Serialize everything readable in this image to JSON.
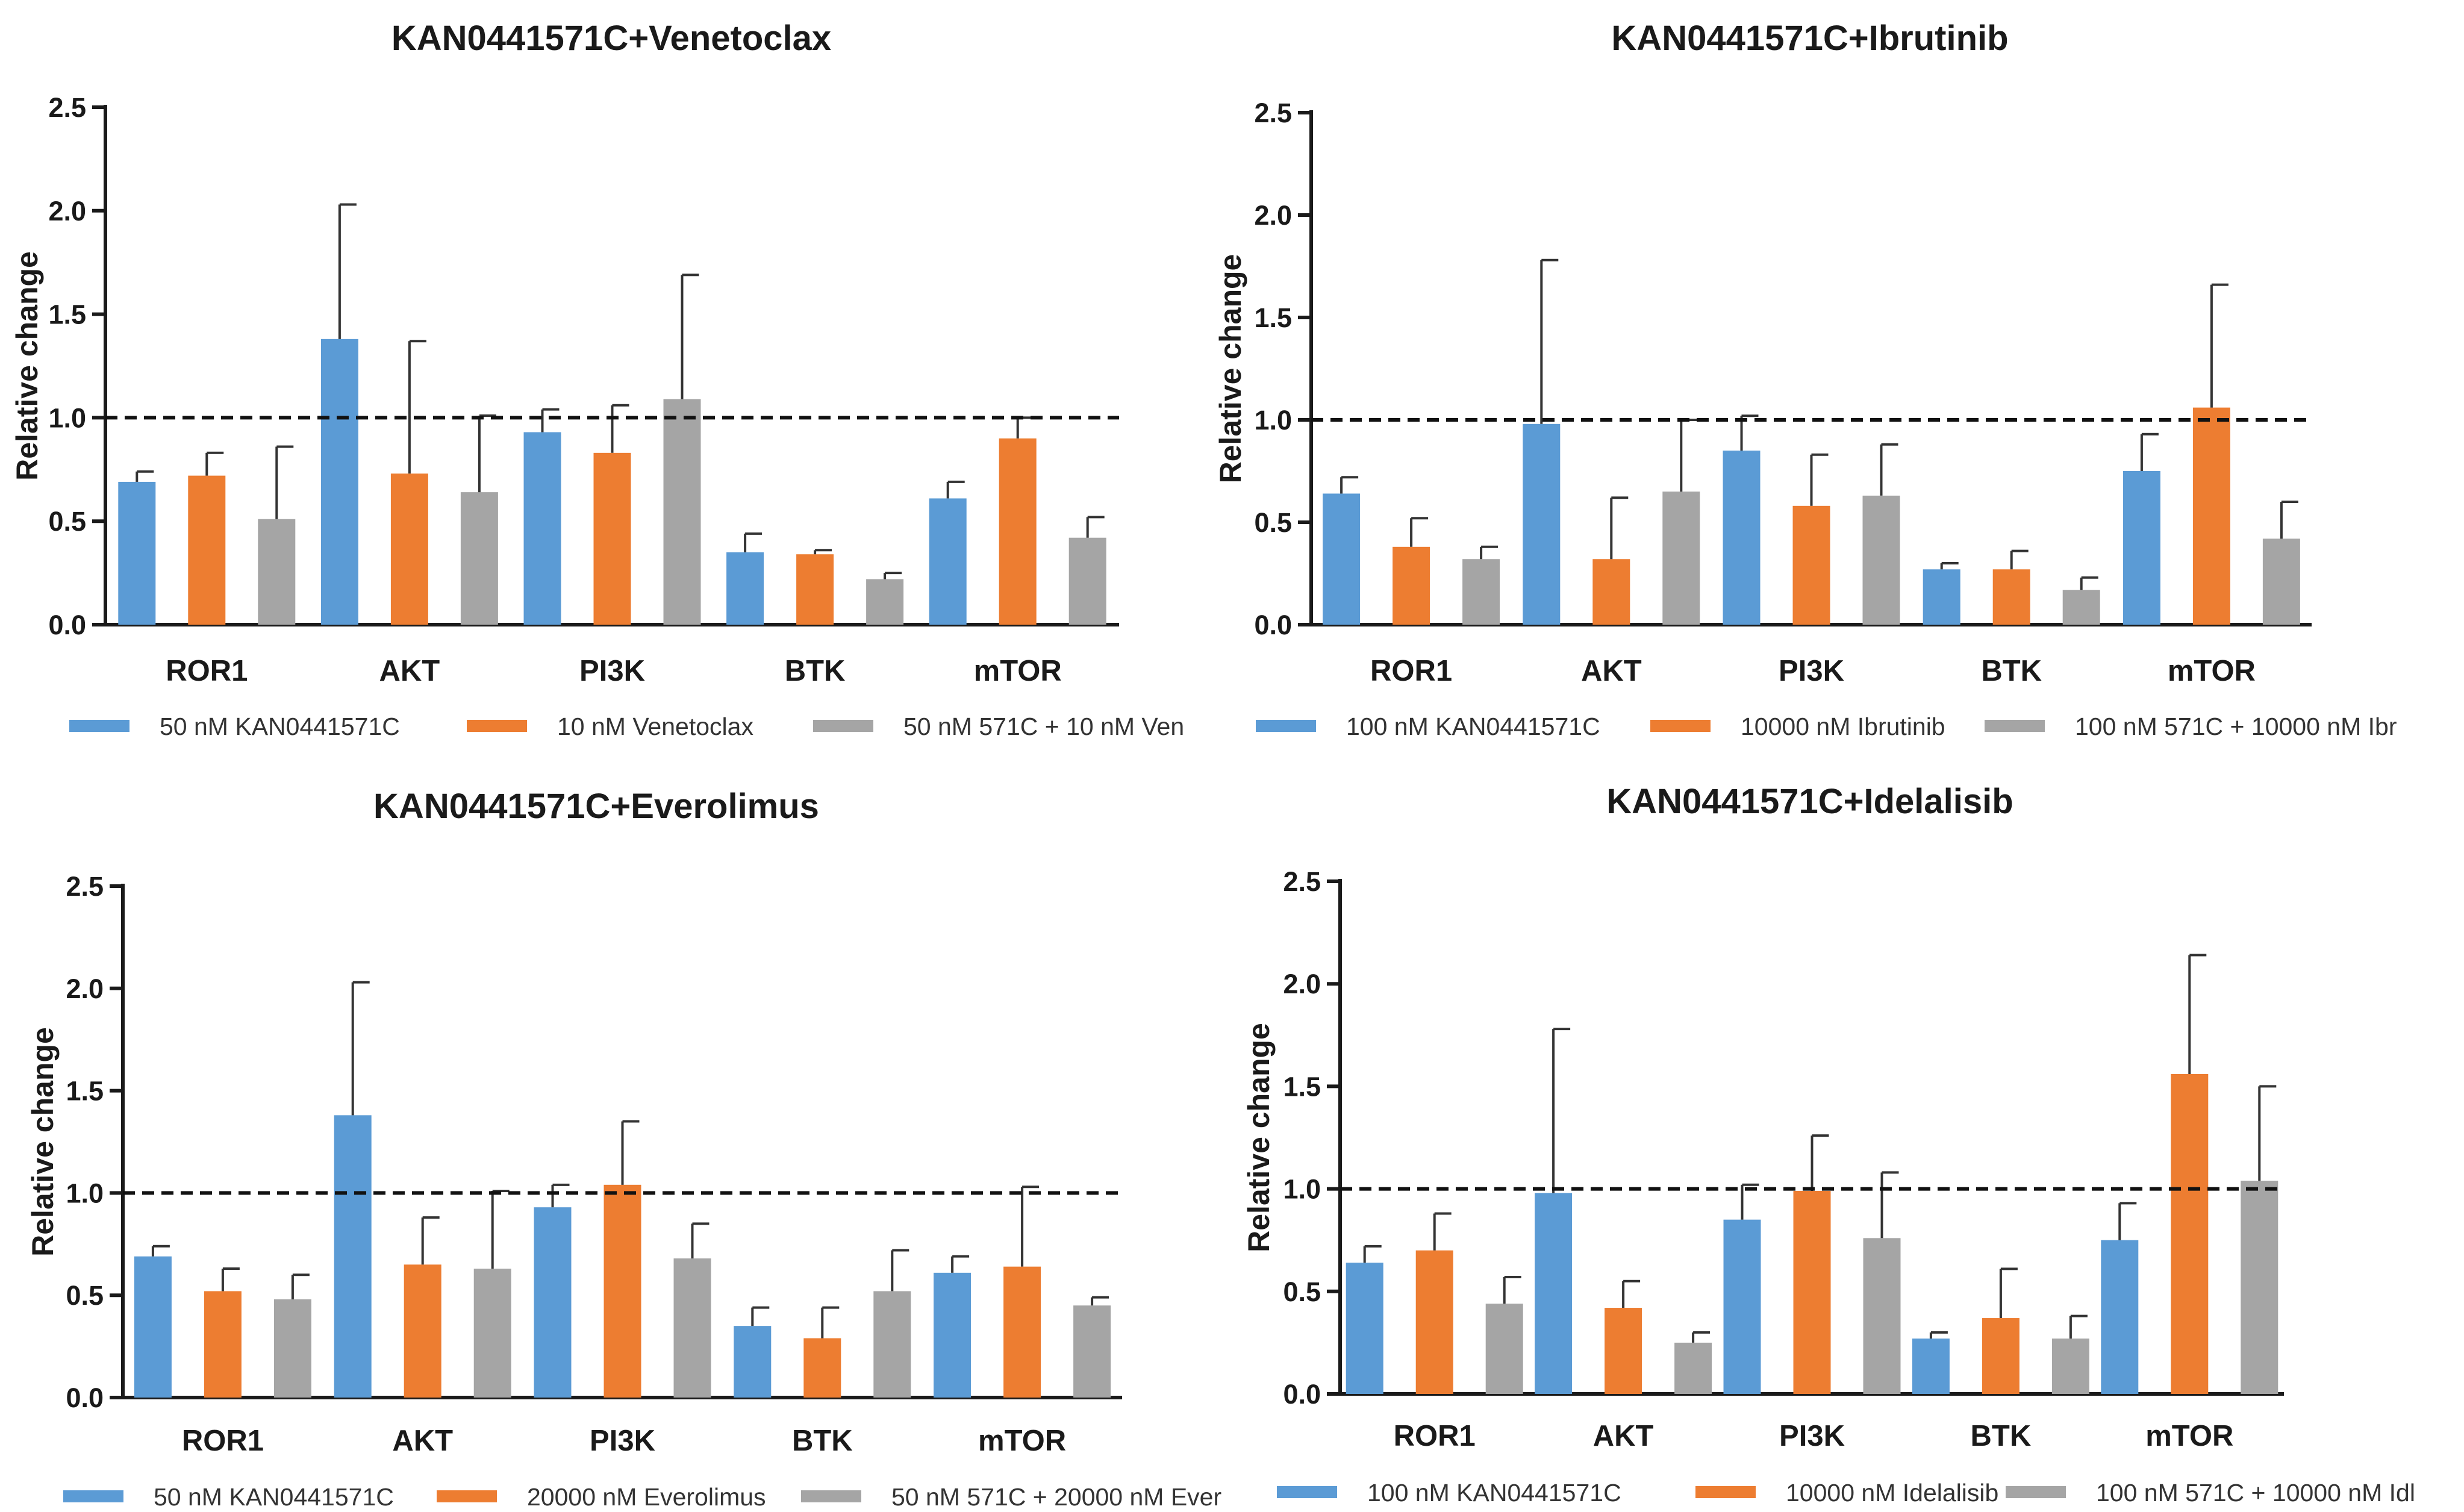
{
  "chart_data": [
    {
      "type": "bar",
      "title": "KAN0441571C+Venetoclax",
      "xlabel": "",
      "ylabel": "Relative change",
      "ylim": [
        0,
        2.5
      ],
      "yticks": [
        "0.0",
        "0.5",
        "1.0",
        "1.5",
        "2.0",
        "2.5"
      ],
      "reference_line": 1.0,
      "categories": [
        "ROR1",
        "AKT",
        "PI3K",
        "BTK",
        "mTOR"
      ],
      "series": [
        {
          "name": "50 nM KAN0441571C",
          "color": "#5b9bd5",
          "values": [
            0.69,
            1.38,
            0.93,
            0.35,
            0.61
          ],
          "errors": [
            0.05,
            0.65,
            0.11,
            0.09,
            0.08
          ]
        },
        {
          "name": "10 nM Venetoclax",
          "color": "#ed7d31",
          "values": [
            0.72,
            0.73,
            0.83,
            0.34,
            0.9
          ],
          "errors": [
            0.11,
            0.64,
            0.23,
            0.02,
            0.1
          ]
        },
        {
          "name": "50 nM 571C + 10 nM Ven",
          "color": "#a5a5a5",
          "values": [
            0.51,
            0.64,
            1.09,
            0.22,
            0.42
          ],
          "errors": [
            0.35,
            0.37,
            0.6,
            0.03,
            0.1
          ]
        }
      ]
    },
    {
      "type": "bar",
      "title": "KAN0441571C+Ibrutinib",
      "xlabel": "",
      "ylabel": "Relative change",
      "ylim": [
        0,
        2.5
      ],
      "yticks": [
        "0.0",
        "0.5",
        "1.0",
        "1.5",
        "2.0",
        "2.5"
      ],
      "reference_line": 1.0,
      "categories": [
        "ROR1",
        "AKT",
        "PI3K",
        "BTK",
        "mTOR"
      ],
      "series": [
        {
          "name": "100 nM KAN0441571C",
          "color": "#5b9bd5",
          "values": [
            0.64,
            0.98,
            0.85,
            0.27,
            0.75
          ],
          "errors": [
            0.08,
            0.8,
            0.17,
            0.03,
            0.18
          ]
        },
        {
          "name": "10000 nM Ibrutinib",
          "color": "#ed7d31",
          "values": [
            0.38,
            0.32,
            0.58,
            0.27,
            1.06
          ],
          "errors": [
            0.14,
            0.3,
            0.25,
            0.09,
            0.6
          ]
        },
        {
          "name": "100 nM 571C + 10000 nM  Ibr",
          "color": "#a5a5a5",
          "values": [
            0.32,
            0.65,
            0.63,
            0.17,
            0.42
          ],
          "errors": [
            0.06,
            0.35,
            0.25,
            0.06,
            0.18
          ]
        }
      ]
    },
    {
      "type": "bar",
      "title": "KAN0441571C+Everolimus",
      "xlabel": "",
      "ylabel": "Relative change",
      "ylim": [
        0,
        2.5
      ],
      "yticks": [
        "0.0",
        "0.5",
        "1.0",
        "1.5",
        "2.0",
        "2.5"
      ],
      "reference_line": 1.0,
      "categories": [
        "ROR1",
        "AKT",
        "PI3K",
        "BTK",
        "mTOR"
      ],
      "series": [
        {
          "name": "50 nM KAN0441571C",
          "color": "#5b9bd5",
          "values": [
            0.69,
            1.38,
            0.93,
            0.35,
            0.61
          ],
          "errors": [
            0.05,
            0.65,
            0.11,
            0.09,
            0.08
          ]
        },
        {
          "name": "20000 nM Everolimus",
          "color": "#ed7d31",
          "values": [
            0.52,
            0.65,
            1.04,
            0.29,
            0.64
          ],
          "errors": [
            0.11,
            0.23,
            0.31,
            0.15,
            0.39
          ]
        },
        {
          "name": "50 nM 571C + 20000 nM Ever",
          "color": "#a5a5a5",
          "values": [
            0.48,
            0.63,
            0.68,
            0.52,
            0.45
          ],
          "errors": [
            0.12,
            0.38,
            0.17,
            0.2,
            0.04
          ]
        }
      ]
    },
    {
      "type": "bar",
      "title": "KAN0441571C+Idelalisib",
      "xlabel": "",
      "ylabel": "Relative change",
      "ylim": [
        0,
        2.5
      ],
      "yticks": [
        "0.0",
        "0.5",
        "1.0",
        "1.5",
        "2.0",
        "2.5"
      ],
      "reference_line": 1.0,
      "categories": [
        "ROR1",
        "AKT",
        "PI3K",
        "BTK",
        "mTOR"
      ],
      "series": [
        {
          "name": "100 nM KAN0441571C",
          "color": "#5b9bd5",
          "values": [
            0.64,
            0.98,
            0.85,
            0.27,
            0.75
          ],
          "errors": [
            0.08,
            0.8,
            0.17,
            0.03,
            0.18
          ]
        },
        {
          "name": "10000 nM Idelalisib",
          "color": "#ed7d31",
          "values": [
            0.7,
            0.42,
            0.99,
            0.37,
            1.56
          ],
          "errors": [
            0.18,
            0.13,
            0.27,
            0.24,
            0.58
          ]
        },
        {
          "name": "100 nM 571C + 10000 nM Idl",
          "color": "#a5a5a5",
          "values": [
            0.44,
            0.25,
            0.76,
            0.27,
            1.04
          ],
          "errors": [
            0.13,
            0.05,
            0.32,
            0.11,
            0.46
          ]
        }
      ]
    }
  ]
}
